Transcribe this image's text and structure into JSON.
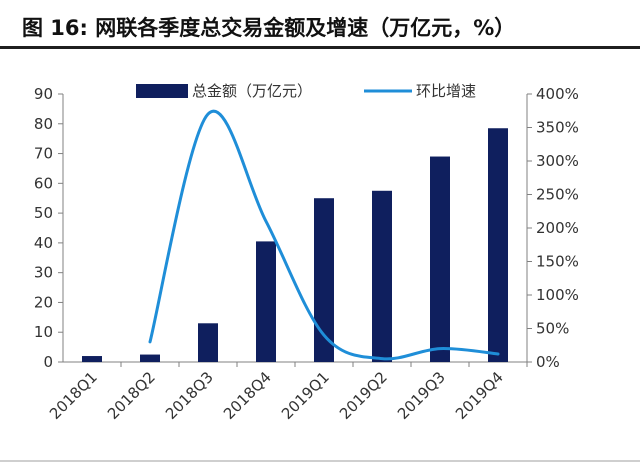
{
  "header": {
    "title": "图 16:  网联各季度总交易金额及增速（万亿元，%）"
  },
  "colors": {
    "bar": "#0f1f5e",
    "line": "#1f8ed8",
    "axis": "#808080"
  },
  "chart_data": {
    "type": "bar",
    "categories": [
      "2018Q1",
      "2018Q2",
      "2018Q3",
      "2018Q4",
      "2019Q1",
      "2019Q2",
      "2019Q3",
      "2019Q4"
    ],
    "series": [
      {
        "name": "总金额（万亿元）",
        "type": "bar",
        "axis": "left",
        "values": [
          2,
          2.5,
          13,
          40.5,
          55,
          57.5,
          69,
          78.5
        ]
      },
      {
        "name": "环比增速",
        "type": "line",
        "axis": "right",
        "unit": "%",
        "values": [
          null,
          30,
          370,
          210,
          40,
          5,
          20,
          12
        ]
      }
    ],
    "y_left": {
      "lim": [
        0,
        90
      ],
      "ticks": [
        "0",
        "10",
        "20",
        "30",
        "40",
        "50",
        "60",
        "70",
        "80",
        "90"
      ]
    },
    "y_right": {
      "lim": [
        0,
        400
      ],
      "ticks": [
        "0%",
        "50%",
        "100%",
        "150%",
        "200%",
        "250%",
        "300%",
        "350%",
        "400%"
      ]
    },
    "legend": [
      "总金额（万亿元）",
      "环比增速"
    ],
    "legend_position": "top",
    "grid": false,
    "line_smooth": true
  }
}
